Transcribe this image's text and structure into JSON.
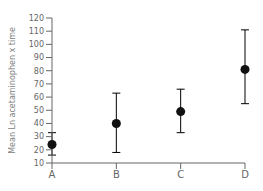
{
  "chart_data": {
    "type": "scatter",
    "categories": [
      "A",
      "B",
      "C",
      "D"
    ],
    "values": [
      24,
      40,
      49,
      81
    ],
    "error_lower": [
      8,
      22,
      16,
      26
    ],
    "error_upper": [
      9,
      23,
      17,
      30
    ],
    "ylabel": "Mean Ln acetaminophen x time",
    "ylim": [
      10,
      120
    ],
    "yticks": [
      10,
      20,
      30,
      40,
      50,
      60,
      70,
      80,
      90,
      100,
      110,
      120
    ],
    "color": "#111111",
    "marker": "circle",
    "grid": false
  }
}
